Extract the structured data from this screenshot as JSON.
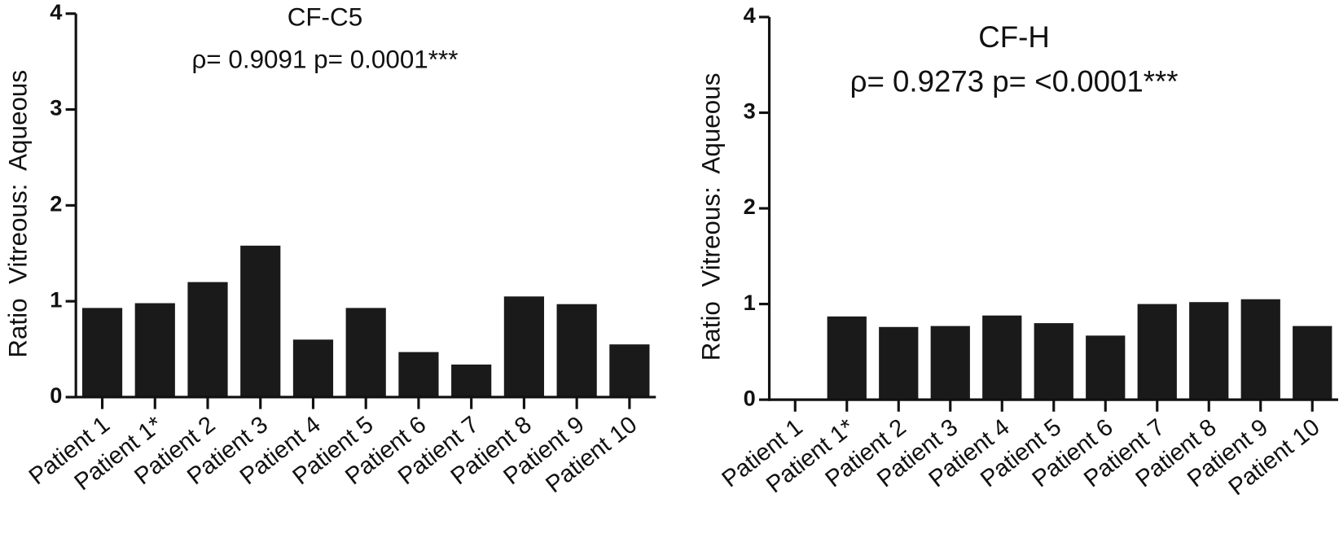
{
  "chart_data": [
    {
      "type": "bar",
      "title": "CF-C5",
      "subtitle": "ρ= 0.9091 p= 0.0001***",
      "y_label": "Ratio  Vitreous:  Aqueous",
      "categories": [
        "Patient 1",
        "Patient 1*",
        "Patient 2",
        "Patient 3",
        "Patient 4",
        "Patient 5",
        "Patient 6",
        "Patient 7",
        "Patient 8",
        "Patient 9",
        "Patient 10"
      ],
      "values": [
        0.93,
        0.98,
        1.2,
        1.58,
        0.6,
        0.93,
        0.47,
        0.34,
        1.05,
        0.97,
        0.55
      ],
      "color": "#1a1a1a",
      "ylim": [
        0,
        4
      ],
      "yticks": [
        0,
        1,
        2,
        3,
        4
      ]
    },
    {
      "type": "bar",
      "title": "CF-H",
      "subtitle": "ρ= 0.9273 p= <0.0001***",
      "y_label": "Ratio  Vitreous:  Aqueous",
      "categories": [
        "Patient 1",
        "Patient 1*",
        "Patient 2",
        "Patient 3",
        "Patient 4",
        "Patient 5",
        "Patient 6",
        "Patient 7",
        "Patient 8",
        "Patient 9",
        "Patient 10"
      ],
      "values": [
        0,
        0.87,
        0.76,
        0.77,
        0.88,
        0.8,
        0.67,
        1.0,
        1.02,
        1.05,
        0.77
      ],
      "color": "#1a1a1a",
      "ylim": [
        0,
        4
      ],
      "yticks": [
        0,
        1,
        2,
        3,
        4
      ]
    }
  ]
}
